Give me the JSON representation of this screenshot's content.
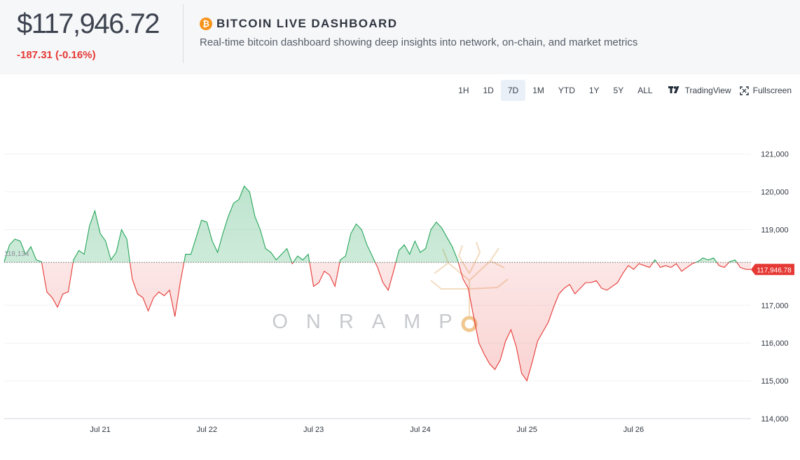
{
  "header": {
    "price": "$117,946.72",
    "change": "-187.31 (-0.16%)",
    "title": "BITCOIN LIVE DASHBOARD",
    "subtitle": "Real-time bitcoin dashboard showing deep insights into network, on-chain, and market metrics",
    "btc_icon": "bitcoin-icon"
  },
  "toolbar": {
    "timeframes": [
      "1H",
      "1D",
      "7D",
      "1M",
      "YTD",
      "1Y",
      "5Y",
      "ALL"
    ],
    "active": "7D",
    "tradingview_label": "TradingView",
    "fullscreen_label": "Fullscreen"
  },
  "chart_data": {
    "type": "area",
    "baseline": 118134,
    "baseline_label": "118,134",
    "last_price": 117946.78,
    "last_price_label": "117,946.78",
    "watermark": "ONRAMP",
    "up_color": "#26a65b",
    "down_color": "#e53935",
    "ylim": [
      114000,
      121700
    ],
    "y_ticks": [
      121000,
      120000,
      119000,
      117000,
      116000,
      115000,
      114000
    ],
    "y_tick_labels": [
      "121,000",
      "120,000",
      "119,000",
      "117,000",
      "116,000",
      "115,000",
      "114,000"
    ],
    "x_range": [
      20.1,
      27.1
    ],
    "x_ticks": [
      21,
      22,
      23,
      24,
      25,
      26
    ],
    "x_tick_labels": [
      "Jul 21",
      "Jul 22",
      "Jul 23",
      "Jul 24",
      "Jul 25",
      "Jul 26"
    ],
    "points": [
      [
        20.1,
        118150
      ],
      [
        20.15,
        118600
      ],
      [
        20.2,
        118750
      ],
      [
        20.25,
        118700
      ],
      [
        20.3,
        118350
      ],
      [
        20.35,
        118550
      ],
      [
        20.4,
        118200
      ],
      [
        20.45,
        118150
      ],
      [
        20.5,
        117350
      ],
      [
        20.55,
        117200
      ],
      [
        20.6,
        116950
      ],
      [
        20.65,
        117300
      ],
      [
        20.7,
        117350
      ],
      [
        20.75,
        118200
      ],
      [
        20.8,
        118450
      ],
      [
        20.85,
        118350
      ],
      [
        20.9,
        119100
      ],
      [
        20.95,
        119500
      ],
      [
        21.0,
        118900
      ],
      [
        21.05,
        118700
      ],
      [
        21.1,
        118200
      ],
      [
        21.15,
        118400
      ],
      [
        21.2,
        119000
      ],
      [
        21.25,
        118750
      ],
      [
        21.3,
        117700
      ],
      [
        21.35,
        117300
      ],
      [
        21.4,
        117200
      ],
      [
        21.45,
        116850
      ],
      [
        21.5,
        117200
      ],
      [
        21.55,
        117350
      ],
      [
        21.6,
        117250
      ],
      [
        21.65,
        117400
      ],
      [
        21.7,
        116700
      ],
      [
        21.75,
        117600
      ],
      [
        21.8,
        118350
      ],
      [
        21.85,
        118350
      ],
      [
        21.9,
        118800
      ],
      [
        21.95,
        119250
      ],
      [
        22.0,
        119200
      ],
      [
        22.05,
        118700
      ],
      [
        22.1,
        118400
      ],
      [
        22.15,
        118900
      ],
      [
        22.2,
        119350
      ],
      [
        22.25,
        119700
      ],
      [
        22.3,
        119800
      ],
      [
        22.35,
        120150
      ],
      [
        22.4,
        120000
      ],
      [
        22.45,
        119350
      ],
      [
        22.5,
        119000
      ],
      [
        22.55,
        118500
      ],
      [
        22.6,
        118400
      ],
      [
        22.65,
        118200
      ],
      [
        22.7,
        118350
      ],
      [
        22.75,
        118500
      ],
      [
        22.8,
        118100
      ],
      [
        22.85,
        118300
      ],
      [
        22.9,
        118200
      ],
      [
        22.95,
        118350
      ],
      [
        23.0,
        117500
      ],
      [
        23.05,
        117600
      ],
      [
        23.1,
        117900
      ],
      [
        23.15,
        117800
      ],
      [
        23.2,
        117500
      ],
      [
        23.25,
        118200
      ],
      [
        23.3,
        118300
      ],
      [
        23.35,
        118900
      ],
      [
        23.4,
        119150
      ],
      [
        23.45,
        119000
      ],
      [
        23.5,
        118600
      ],
      [
        23.55,
        118300
      ],
      [
        23.6,
        118000
      ],
      [
        23.65,
        117600
      ],
      [
        23.7,
        117400
      ],
      [
        23.75,
        117900
      ],
      [
        23.8,
        118450
      ],
      [
        23.85,
        118600
      ],
      [
        23.9,
        118350
      ],
      [
        23.95,
        118700
      ],
      [
        24.0,
        118400
      ],
      [
        24.05,
        118500
      ],
      [
        24.1,
        119000
      ],
      [
        24.15,
        119200
      ],
      [
        24.2,
        119050
      ],
      [
        24.25,
        118800
      ],
      [
        24.3,
        118550
      ],
      [
        24.35,
        118200
      ],
      [
        24.4,
        117700
      ],
      [
        24.45,
        117450
      ],
      [
        24.5,
        116700
      ],
      [
        24.55,
        116000
      ],
      [
        24.6,
        115700
      ],
      [
        24.65,
        115450
      ],
      [
        24.7,
        115300
      ],
      [
        24.75,
        115550
      ],
      [
        24.8,
        116050
      ],
      [
        24.85,
        116350
      ],
      [
        24.9,
        115900
      ],
      [
        24.95,
        115200
      ],
      [
        25.0,
        115000
      ],
      [
        25.05,
        115500
      ],
      [
        25.1,
        116050
      ],
      [
        25.15,
        116300
      ],
      [
        25.2,
        116550
      ],
      [
        25.25,
        116950
      ],
      [
        25.3,
        117300
      ],
      [
        25.35,
        117450
      ],
      [
        25.4,
        117550
      ],
      [
        25.45,
        117300
      ],
      [
        25.5,
        117450
      ],
      [
        25.55,
        117600
      ],
      [
        25.6,
        117600
      ],
      [
        25.65,
        117650
      ],
      [
        25.7,
        117450
      ],
      [
        25.75,
        117400
      ],
      [
        25.8,
        117500
      ],
      [
        25.85,
        117600
      ],
      [
        25.9,
        117850
      ],
      [
        25.95,
        118050
      ],
      [
        26.0,
        117950
      ],
      [
        26.05,
        118100
      ],
      [
        26.1,
        118050
      ],
      [
        26.15,
        118000
      ],
      [
        26.2,
        118200
      ],
      [
        26.25,
        118000
      ],
      [
        26.3,
        118050
      ],
      [
        26.35,
        118000
      ],
      [
        26.4,
        118100
      ],
      [
        26.45,
        117900
      ],
      [
        26.5,
        118000
      ],
      [
        26.55,
        118100
      ],
      [
        26.6,
        118150
      ],
      [
        26.65,
        118250
      ],
      [
        26.7,
        118200
      ],
      [
        26.75,
        118250
      ],
      [
        26.8,
        118050
      ],
      [
        26.85,
        118000
      ],
      [
        26.9,
        118150
      ],
      [
        26.95,
        118200
      ],
      [
        27.0,
        118000
      ],
      [
        27.05,
        117950
      ],
      [
        27.1,
        117947
      ]
    ]
  }
}
